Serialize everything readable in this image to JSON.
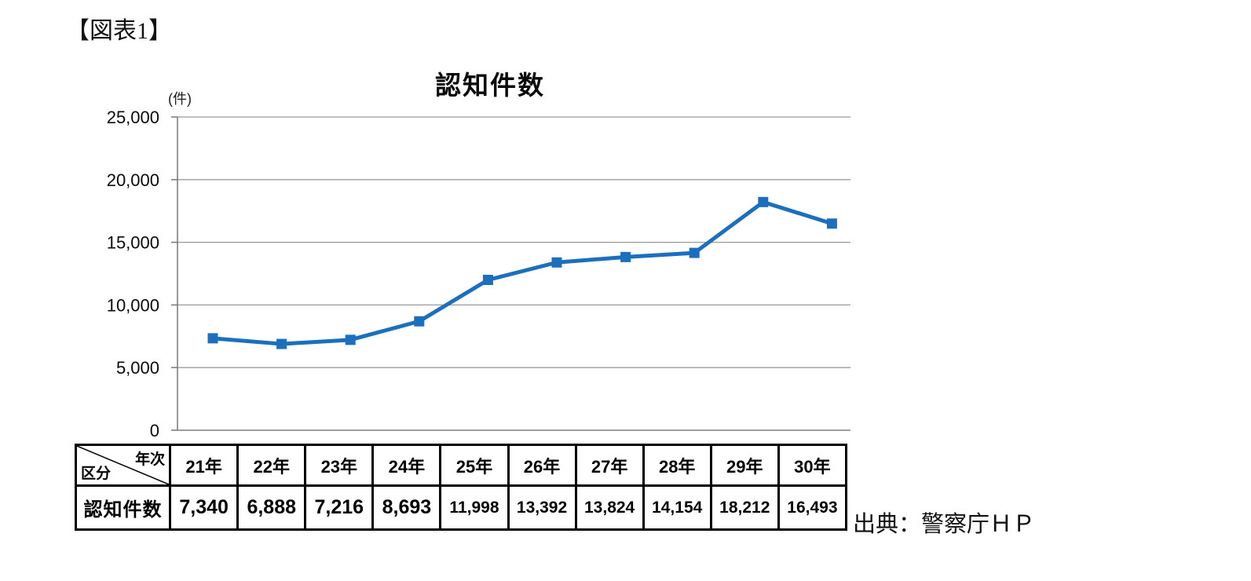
{
  "figure_label": "【図表1】",
  "source_text": "出典：警察庁ＨＰ",
  "chart_data": {
    "type": "line",
    "title": "認知件数",
    "unit_label": "(件)",
    "categories": [
      "21年",
      "22年",
      "23年",
      "24年",
      "25年",
      "26年",
      "27年",
      "28年",
      "29年",
      "30年"
    ],
    "series": [
      {
        "name": "認知件数",
        "values": [
          7340,
          6888,
          7216,
          8693,
          11998,
          13392,
          13824,
          14154,
          18212,
          16493
        ]
      }
    ],
    "ylim": [
      0,
      25000
    ],
    "ytick_interval": 5000,
    "ytick_labels": [
      "0",
      "5,000",
      "10,000",
      "15,000",
      "20,000",
      "25,000"
    ],
    "grid": true,
    "legend_position": "none",
    "line_color": "#1b6fbd",
    "marker": "square",
    "gridline_color": "#9b9b9b",
    "axis_color": "#7f7f7f"
  },
  "table": {
    "corner": {
      "top_right": "年次",
      "bottom_left": "区分"
    },
    "columns": [
      "21年",
      "22年",
      "23年",
      "24年",
      "25年",
      "26年",
      "27年",
      "28年",
      "29年",
      "30年"
    ],
    "rows": [
      {
        "label": "認知件数",
        "values": [
          "7,340",
          "6,888",
          "7,216",
          "8,693",
          "11,998",
          "13,392",
          "13,824",
          "14,154",
          "18,212",
          "16,493"
        ]
      }
    ]
  }
}
